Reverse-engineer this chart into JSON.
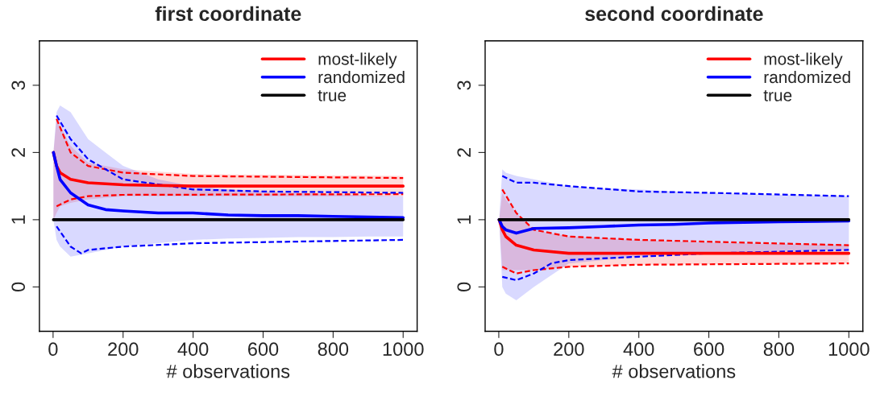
{
  "chart_data": [
    {
      "type": "line",
      "title": "first coordinate",
      "xlabel": "# observations",
      "xlim": [
        -39,
        1040
      ],
      "ylim": [
        -0.66,
        3.66
      ],
      "xticks": [
        0,
        200,
        400,
        600,
        800,
        1000
      ],
      "yticks": [
        0,
        1,
        2,
        3
      ],
      "grid": false,
      "legend": "top right",
      "series": [
        {
          "color": "#ff0000",
          "line_style": "dashed",
          "x": [
            10,
            50,
            100,
            200,
            400,
            1000
          ],
          "values": [
            2.5,
            2.0,
            1.8,
            1.7,
            1.65,
            1.62
          ]
        },
        {
          "color": "#ff0000",
          "line_style": "dashed",
          "x": [
            10,
            50,
            100,
            200,
            1000
          ],
          "values": [
            1.2,
            1.3,
            1.35,
            1.37,
            1.38
          ]
        },
        {
          "color": "#0000ff",
          "line_style": "dashed",
          "x": [
            10,
            50,
            100,
            200,
            400,
            600,
            1000
          ],
          "values": [
            2.55,
            2.2,
            1.9,
            1.6,
            1.45,
            1.42,
            1.4
          ]
        },
        {
          "color": "#0000ff",
          "line_style": "dashed",
          "x": [
            10,
            50,
            80,
            100,
            200,
            400,
            1000
          ],
          "values": [
            0.9,
            0.6,
            0.5,
            0.55,
            0.6,
            0.65,
            0.7
          ]
        },
        {
          "name": "most-likely",
          "color": "#ff0000",
          "line_style": "solid",
          "x": [
            1,
            10,
            20,
            50,
            100,
            200,
            400,
            1000
          ],
          "values": [
            2.0,
            1.8,
            1.7,
            1.6,
            1.55,
            1.52,
            1.5,
            1.5
          ],
          "lower": [
            1.0,
            1.1,
            1.2,
            1.25,
            1.3,
            1.35,
            1.35,
            1.35
          ],
          "upper": [
            2.0,
            2.5,
            2.4,
            2.1,
            1.85,
            1.75,
            1.68,
            1.65
          ]
        },
        {
          "name": "randomized",
          "color": "#0000ff",
          "line_style": "solid",
          "x": [
            1,
            10,
            20,
            50,
            100,
            150,
            200,
            300,
            400,
            500,
            600,
            700,
            800,
            900,
            1000
          ],
          "values": [
            2.0,
            1.8,
            1.6,
            1.4,
            1.22,
            1.15,
            1.13,
            1.1,
            1.1,
            1.07,
            1.06,
            1.06,
            1.05,
            1.04,
            1.03
          ],
          "lower": [
            1.0,
            0.7,
            0.6,
            0.45,
            0.5,
            0.55,
            0.6,
            0.65,
            0.7,
            0.72,
            0.73,
            0.74,
            0.74,
            0.75,
            0.75
          ],
          "upper": [
            2.0,
            2.6,
            2.7,
            2.6,
            2.2,
            2.0,
            1.8,
            1.6,
            1.5,
            1.45,
            1.42,
            1.4,
            1.38,
            1.36,
            1.35
          ]
        },
        {
          "name": "true",
          "color": "#000000",
          "line_style": "solid",
          "x": [
            1,
            1000
          ],
          "values": [
            1,
            1
          ]
        }
      ]
    },
    {
      "type": "line",
      "title": "second coordinate",
      "xlabel": "# observations",
      "xlim": [
        -39,
        1040
      ],
      "ylim": [
        -0.66,
        3.66
      ],
      "xticks": [
        0,
        200,
        400,
        600,
        800,
        1000
      ],
      "yticks": [
        0,
        1,
        2,
        3
      ],
      "grid": false,
      "legend": "top right",
      "series": [
        {
          "color": "#ff0000",
          "line_style": "dashed",
          "x": [
            10,
            50,
            100,
            200,
            400,
            1000
          ],
          "values": [
            1.45,
            1.1,
            0.85,
            0.75,
            0.7,
            0.62
          ]
        },
        {
          "color": "#ff0000",
          "line_style": "dashed",
          "x": [
            10,
            50,
            100,
            200,
            400,
            1000
          ],
          "values": [
            0.3,
            0.2,
            0.25,
            0.3,
            0.33,
            0.35
          ]
        },
        {
          "color": "#0000ff",
          "line_style": "dashed",
          "x": [
            10,
            50,
            100,
            200,
            400,
            600,
            1000
          ],
          "values": [
            1.65,
            1.55,
            1.55,
            1.5,
            1.42,
            1.4,
            1.35
          ]
        },
        {
          "color": "#0000ff",
          "line_style": "dashed",
          "x": [
            10,
            50,
            100,
            150,
            200,
            400,
            600,
            1000
          ],
          "values": [
            0.15,
            0.1,
            0.2,
            0.35,
            0.4,
            0.45,
            0.5,
            0.55
          ]
        },
        {
          "name": "most-likely",
          "color": "#ff0000",
          "line_style": "solid",
          "x": [
            1,
            10,
            20,
            50,
            100,
            200,
            400,
            600,
            800,
            1000
          ],
          "values": [
            1.0,
            0.85,
            0.75,
            0.62,
            0.55,
            0.5,
            0.5,
            0.5,
            0.5,
            0.5
          ],
          "lower": [
            1.0,
            0.25,
            0.25,
            0.25,
            0.25,
            0.3,
            0.33,
            0.34,
            0.35,
            0.35
          ],
          "upper": [
            1.0,
            1.4,
            1.3,
            1.1,
            0.85,
            0.75,
            0.7,
            0.66,
            0.64,
            0.62
          ]
        },
        {
          "name": "randomized",
          "color": "#0000ff",
          "line_style": "solid",
          "x": [
            1,
            10,
            20,
            50,
            100,
            200,
            300,
            400,
            500,
            600,
            800,
            1000
          ],
          "values": [
            1.0,
            0.9,
            0.85,
            0.8,
            0.87,
            0.88,
            0.9,
            0.92,
            0.93,
            0.95,
            0.97,
            0.98
          ],
          "lower": [
            1.0,
            0.0,
            -0.1,
            -0.2,
            0.0,
            0.35,
            0.4,
            0.45,
            0.48,
            0.5,
            0.53,
            0.55
          ],
          "upper": [
            1.0,
            1.75,
            1.7,
            1.65,
            1.6,
            1.5,
            1.47,
            1.45,
            1.42,
            1.4,
            1.37,
            1.35
          ]
        },
        {
          "name": "true",
          "color": "#000000",
          "line_style": "solid",
          "x": [
            1,
            1000
          ],
          "values": [
            1,
            1
          ]
        }
      ]
    }
  ]
}
